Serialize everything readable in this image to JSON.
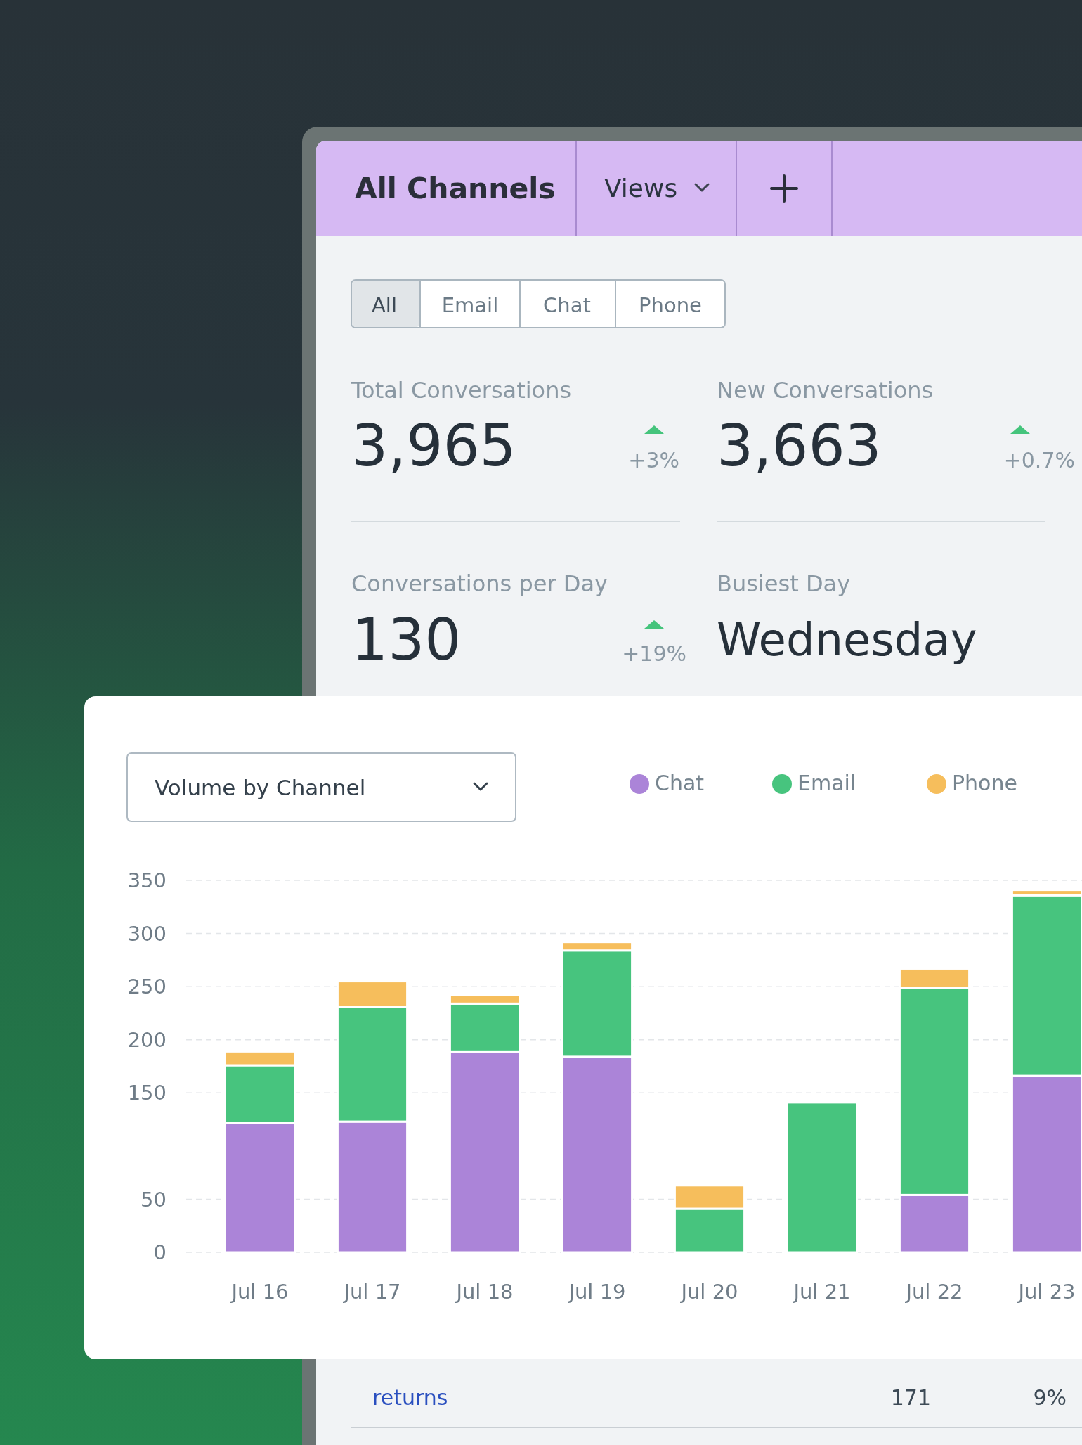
{
  "chart_data": [
    {
      "type": "other",
      "title": "All Channels",
      "annotations": [
        "Views",
        "All",
        "Email",
        "Chat",
        "Phone",
        "Total Conversations",
        "3,965",
        "+3%",
        "New Conversations",
        "3,663",
        "+0.7%",
        "Conversations per Day",
        "130",
        "+19%",
        "Busiest Day",
        "Wednesday",
        "returns",
        "171",
        "9%"
      ]
    },
    {
      "type": "bar",
      "title": "Volume by Channel",
      "stacked": true,
      "categories": [
        "Jul 16",
        "Jul 17",
        "Jul 18",
        "Jul 19",
        "Jul 20",
        "Jul 21",
        "Jul 22",
        "Jul 23"
      ],
      "series": [
        {
          "name": "Chat",
          "color": "#ab84d8",
          "values": [
            122,
            123,
            189,
            184,
            0,
            0,
            54,
            166
          ]
        },
        {
          "name": "Email",
          "color": "#47c47e",
          "values": [
            54,
            108,
            45,
            100,
            41,
            141,
            195,
            170
          ]
        },
        {
          "name": "Phone",
          "color": "#f6be5c",
          "values": [
            13,
            24,
            8,
            8,
            22,
            0,
            18,
            5
          ]
        }
      ],
      "ylim": [
        0,
        350
      ],
      "yticks": [
        0,
        50,
        150,
        200,
        250,
        300,
        350
      ],
      "grid": "y",
      "legend": "top"
    }
  ]
}
